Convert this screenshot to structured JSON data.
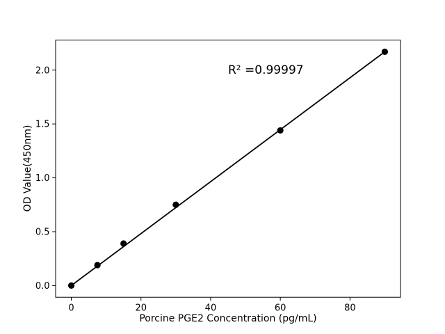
{
  "figure": {
    "background": "#ffffff"
  },
  "chart_data": {
    "type": "scatter",
    "title": "",
    "xlabel": "Porcine PGE2 Concentration (pg/mL)",
    "ylabel": "OD Value(450nm)",
    "annotation": "R² =0.99997",
    "x": [
      0,
      7.5,
      15,
      30,
      60,
      90
    ],
    "y": [
      0.0,
      0.19,
      0.39,
      0.75,
      1.44,
      2.17
    ],
    "fit_line": {
      "x": [
        0,
        90
      ],
      "y": [
        0.0,
        2.17
      ]
    },
    "xticks": [
      0,
      20,
      40,
      60,
      80
    ],
    "xtick_labels": [
      "0",
      "20",
      "40",
      "60",
      "80"
    ],
    "yticks": [
      0.0,
      0.5,
      1.0,
      1.5,
      2.0
    ],
    "ytick_labels": [
      "0.0",
      "0.5",
      "1.0",
      "1.5",
      "2.0"
    ],
    "xlim": [
      -4.5,
      94.5
    ],
    "ylim": [
      -0.1085,
      2.2785
    ],
    "grid": false,
    "legend": null,
    "colors": {
      "marker": "#000000",
      "line": "#000000",
      "axis": "#000000",
      "background": "#ffffff"
    }
  }
}
